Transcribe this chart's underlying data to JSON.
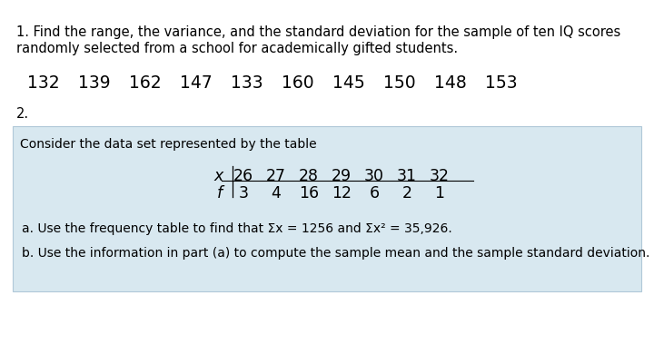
{
  "bg_color": "#ffffff",
  "box_bg_color": "#d8e8f0",
  "box_edge_color": "#b0c8d8",
  "problem1_line1": "1. Find the range, the variance, and the standard deviation for the sample of ten IQ scores",
  "problem1_line2": "randomly selected from a school for academically gifted students.",
  "iq_scores_list": [
    "132",
    "139",
    "162",
    "147",
    "133",
    "160",
    "145",
    "150",
    "148",
    "153"
  ],
  "problem2_label": "2.",
  "box_header": "Consider the data set represented by the table",
  "table_x_values": [
    "26",
    "27",
    "28",
    "29",
    "30",
    "31",
    "32"
  ],
  "table_f_values": [
    "3",
    "4",
    "16",
    "12",
    "6",
    "2",
    "1"
  ],
  "part_a": "a. Use the frequency table to find that Σx = 1256 and Σx² = 35,926.",
  "part_b": "b. Use the information in part (a) to compute the sample mean and the sample standard deviation.",
  "font_size_body": 10.5,
  "font_size_scores": 13.5,
  "font_size_table": 12.5,
  "font_size_parts": 10.0
}
